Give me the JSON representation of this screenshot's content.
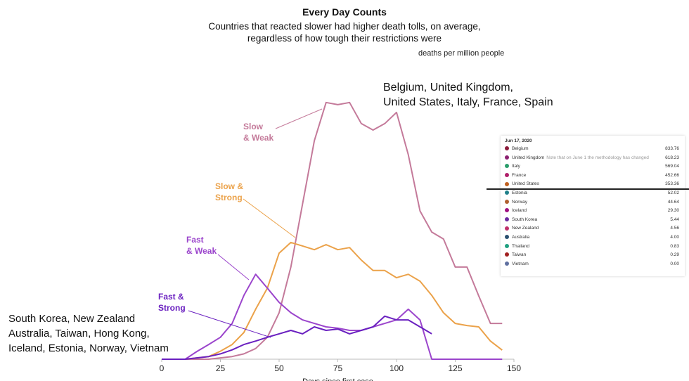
{
  "title": "Every Day Counts",
  "subtitle": "Countries that reacted slower had higher death tolls, on average,\nregardless of how tough their restrictions were",
  "chart_data": {
    "type": "line",
    "ylabel": "deaths per million people",
    "xlabel": "Days since first case",
    "x": [
      0,
      5,
      10,
      15,
      20,
      25,
      30,
      35,
      40,
      45,
      50,
      55,
      60,
      65,
      70,
      75,
      80,
      85,
      90,
      95,
      100,
      105,
      110,
      115,
      120,
      125,
      130,
      135,
      140,
      145
    ],
    "xlim": [
      0,
      150
    ],
    "xticks": [
      0,
      25,
      50,
      75,
      100,
      125,
      150
    ],
    "ylim": [
      0,
      100
    ],
    "series": [
      {
        "name": "Slow\n& Weak",
        "color": "#c47a9a",
        "values": [
          0,
          0,
          0,
          0,
          0,
          0.5,
          1,
          2,
          4,
          8.2,
          17.4,
          34.5,
          58.2,
          81.8,
          96.1,
          95.3,
          96.1,
          88.2,
          85.8,
          88.2,
          92.4,
          76.6,
          55.5,
          47.6,
          45,
          34.5,
          34.5,
          23.7,
          13.4,
          13.4
        ]
      },
      {
        "name": "Slow &\nStrong",
        "color": "#eba24a",
        "values": [
          0,
          0,
          0,
          0.5,
          1,
          3,
          5.5,
          10,
          18.7,
          26.6,
          39.7,
          43.7,
          42.4,
          41,
          42.9,
          41,
          41.8,
          37.1,
          33.2,
          33.2,
          30.5,
          31.8,
          29.2,
          23.9,
          17.4,
          13.4,
          12.6,
          12.1,
          6.8,
          3.4
        ]
      },
      {
        "name": "Fast\n& Weak",
        "color": "#9b45cc",
        "values": [
          0,
          0,
          0,
          2.9,
          5.5,
          8.2,
          13.4,
          23.9,
          31.8,
          26.6,
          21.3,
          17.4,
          14.7,
          13.4,
          12.1,
          11.6,
          10.8,
          10.8,
          12.1,
          13.4,
          14.7,
          18.7,
          14.7,
          0,
          0,
          0,
          0,
          0,
          0,
          0
        ]
      },
      {
        "name": "Fast &\nStrong",
        "color": "#6a20c0",
        "values": [
          0,
          0,
          0,
          0.5,
          1,
          2,
          3.5,
          5.5,
          6.8,
          8.2,
          9.5,
          10.8,
          9.5,
          12.1,
          10.8,
          11.3,
          9.5,
          10.8,
          12.1,
          16.1,
          14.7,
          14.7,
          12.1,
          9.5,
          null,
          null,
          null,
          null,
          null,
          null
        ]
      }
    ],
    "annotations": [
      {
        "text": "Belgium, United Kingdom,\nUnited States, Italy, France, Spain"
      },
      {
        "text": "South Korea, New Zealand\nAustralia, Taiwan, Hong Kong,\nIceland, Estonia, Norway, Vietnam"
      }
    ]
  },
  "inset": {
    "date": "Jun 17, 2020",
    "rows": [
      {
        "name": "Belgium",
        "color": "#8b1a3a",
        "value": "833.76"
      },
      {
        "name": "United Kingdom",
        "note": "Note that on June 1 the methodology has changed",
        "color": "#8b2070",
        "value": "618.23"
      },
      {
        "name": "Italy",
        "color": "#2a9d6a",
        "value": "569.04"
      },
      {
        "name": "France",
        "color": "#b0206a",
        "value": "452.66"
      },
      {
        "name": "United States",
        "color": "#c06020",
        "value": "353.36"
      },
      {
        "name": "Estonia",
        "color": "#20808a",
        "value": "52.02"
      },
      {
        "name": "Norway",
        "color": "#b06030",
        "value": "44.64"
      },
      {
        "name": "Iceland",
        "color": "#a01080",
        "value": "29.30"
      },
      {
        "name": "South Korea",
        "color": "#6a2aa0",
        "value": "5.44"
      },
      {
        "name": "New Zealand",
        "color": "#c0306a",
        "value": "4.56"
      },
      {
        "name": "Australia",
        "color": "#2a5070",
        "value": "4.00"
      },
      {
        "name": "Thailand",
        "color": "#20a080",
        "value": "0.83"
      },
      {
        "name": "Taiwan",
        "color": "#a02020",
        "value": "0.29"
      },
      {
        "name": "Vietnam",
        "color": "#6070a0",
        "value": "0.00"
      }
    ]
  }
}
